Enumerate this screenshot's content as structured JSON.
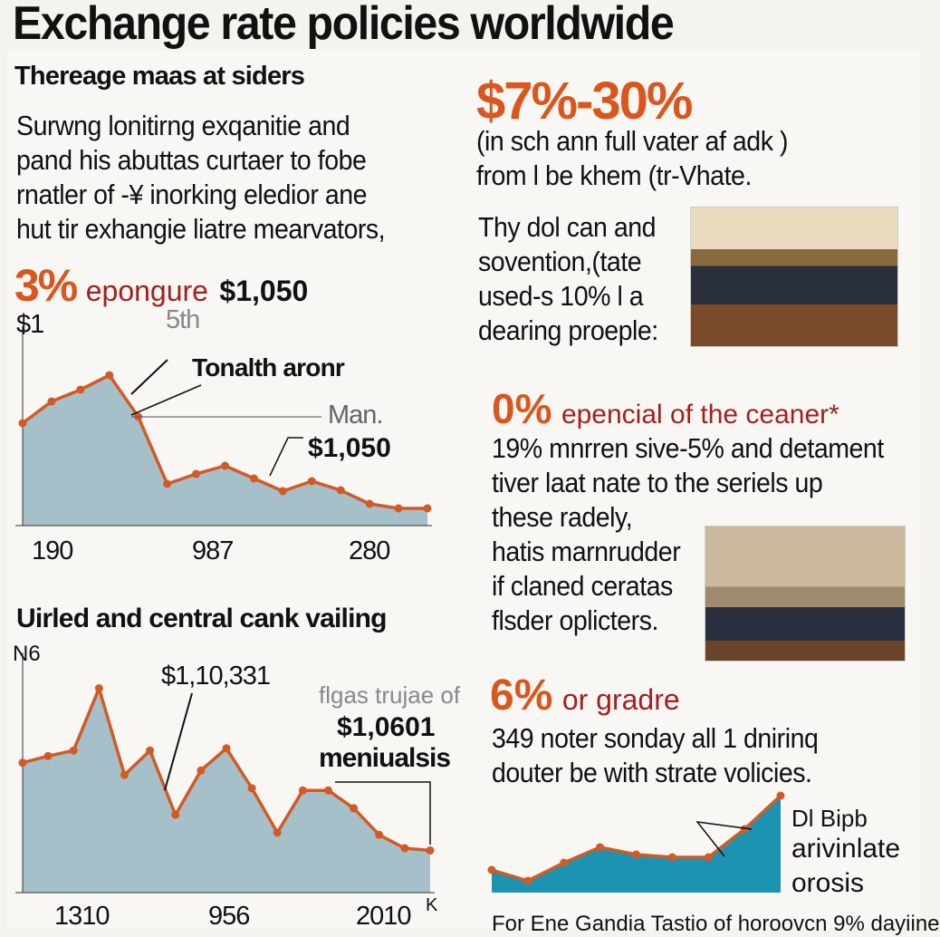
{
  "title": "Exchange rate policies worldwide",
  "left": {
    "heading1": "Thereage maas at siders",
    "paragraph1": [
      "Surwng lonitirng exqanitie and",
      "pand his abuttas curtaer to fobe",
      "rnatler of -¥ inorking eledior ane",
      "hut tir exhangie liatre mearvators,"
    ],
    "stat1": {
      "value": "3%",
      "label": "epongure",
      "amount": "$1,050"
    },
    "heading2": "Uirled and central cank vailing"
  },
  "right": {
    "stat_range": "$7%-30%",
    "range_text": [
      "(in sch ann full vater af adk )",
      "from l be khem (tr-Vhate."
    ],
    "paragraph2": [
      "Thy dol can and",
      "sovention,(tate",
      "used-s 10% l a",
      "dearing proeple:"
    ],
    "stat2": {
      "value": "0%",
      "label": "epencial of the ceaner*"
    },
    "paragraph3": [
      "19% mnrren sive-5% and detament",
      "tiver laat nate to the seriels up",
      "these radely,",
      "hatis marnrudder",
      "if claned ceratas",
      "flsder oplicters."
    ],
    "stat3": {
      "value": "6%",
      "label": "or gradre"
    },
    "paragraph4": [
      "349 noter sonday all 1 dnirinq",
      "douter be with strate volicies."
    ],
    "footer": "For Ene Gandia Tastio of horoovcn 9% dayiine"
  },
  "colors": {
    "accent": "#d9571e",
    "dark_red": "#a32020",
    "area_gray": "#a6c0c9",
    "area_teal": "#1c93b0",
    "line": "#d25a26"
  },
  "chart_data": [
    {
      "type": "area",
      "title": "3% epongure $1,050",
      "ylabel": "$1",
      "annotations": [
        "5th",
        "Tonalth aronr",
        "Man.",
        "$1,050"
      ],
      "x_ticks": [
        "190",
        "987",
        "280"
      ],
      "ylim": [
        0,
        100
      ],
      "values": [
        56.5,
        68.5,
        75,
        83,
        60,
        23,
        28.5,
        33,
        26,
        19,
        24.5,
        19.5,
        12,
        9.5,
        9.5
      ]
    },
    {
      "type": "area",
      "title": "Uirled and central cank vailing",
      "ylabel": "N6",
      "annotations": [
        "$1,10,331",
        "flgas trujae of",
        "$1,0601",
        "meniualsis"
      ],
      "x_ticks": [
        "1310",
        "956",
        "2010",
        "K"
      ],
      "ylim": [
        0,
        100
      ],
      "values": [
        58.5,
        61.5,
        64,
        92,
        53,
        64,
        35,
        55,
        65,
        47,
        27,
        46,
        46,
        38,
        26,
        20,
        19
      ]
    },
    {
      "type": "area",
      "title": "6% or gradre",
      "annotations": [
        "Dl Bipb",
        "arivinlate",
        "orosis"
      ],
      "x_ticks": [],
      "ylim": [
        0,
        115
      ],
      "values": [
        25,
        13,
        33,
        50,
        42,
        39,
        39,
        70,
        107
      ]
    }
  ]
}
